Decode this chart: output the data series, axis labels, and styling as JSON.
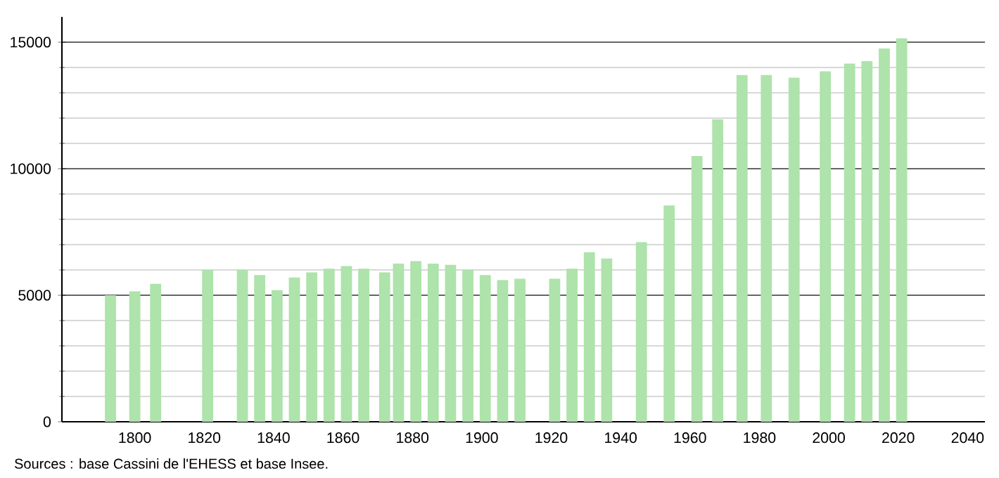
{
  "chart_data": {
    "type": "bar",
    "color": "#aee3ab",
    "grid": "y",
    "xlim": [
      1779,
      2045
    ],
    "ylim": [
      0,
      16000
    ],
    "xticks": [
      1800,
      1820,
      1840,
      1860,
      1880,
      1900,
      1920,
      1940,
      1960,
      1980,
      2000,
      2020,
      2040
    ],
    "yticks": [
      0,
      5000,
      10000,
      15000
    ],
    "x": [
      1793,
      1800,
      1806,
      1821,
      1831,
      1836,
      1841,
      1846,
      1851,
      1856,
      1861,
      1866,
      1872,
      1876,
      1881,
      1886,
      1891,
      1896,
      1901,
      1906,
      1911,
      1921,
      1926,
      1931,
      1936,
      1946,
      1954,
      1962,
      1968,
      1975,
      1982,
      1990,
      1999,
      2006,
      2011,
      2016,
      2021
    ],
    "values": [
      5000,
      5150,
      5450,
      6000,
      6000,
      5800,
      5200,
      5700,
      5900,
      6050,
      6150,
      6050,
      5900,
      6250,
      6350,
      6250,
      6200,
      6000,
      5800,
      5600,
      5650,
      5650,
      6050,
      6700,
      6450,
      7100,
      8550,
      10500,
      11950,
      13700,
      13700,
      13600,
      13850,
      14150,
      14250,
      14750,
      15150
    ],
    "annotations": [
      "Sources : base Cassini de l'EHESS et base Insee."
    ]
  }
}
